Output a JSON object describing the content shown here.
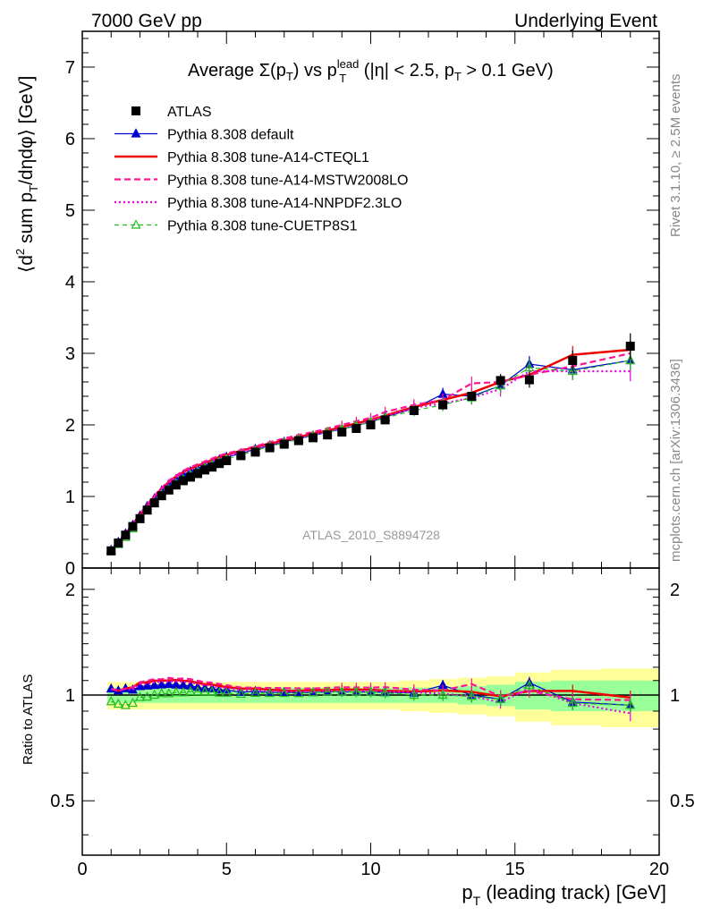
{
  "header": {
    "left": "7000 GeV pp",
    "right": "Underlying Event",
    "side_top": "Rivet 3.1.10, ≥ 2.5M events",
    "side_bottom": "mcplots.cern.ch [arXiv:1306.3436]",
    "watermark": "ATLAS_2010_S8894728"
  },
  "chart_data": {
    "type": "line",
    "title": "Average Σ(pT) vs pT lead (|η| < 2.5, pT > 0.1 GeV)",
    "title_parts": {
      "avg": "Average ",
      "sigma": "Σ(p",
      "sub_t": "T",
      "close": ")",
      "vs": " vs p",
      "sup_lead": "lead",
      "cut1": " (|η| < 2.5, p",
      "cut2": " > 0.1 GeV)"
    },
    "ylabel_parts": {
      "open": "⟨d",
      "sup2": "2",
      "mid": " sum p",
      "sub_t": "T",
      "tail": "/dηdφ⟩ [GeV]"
    },
    "ratio_ylabel": "Ratio to ATLAS",
    "xlabel_parts": {
      "p": "p",
      "sub_t": "T",
      "rest": " (leading track) [GeV]"
    },
    "xlim": [
      0,
      20
    ],
    "ylim": [
      0,
      7.5
    ],
    "ratio_ylim": [
      0.35,
      2.3
    ],
    "x_ticks": [
      "0",
      "5",
      "10",
      "15",
      "20"
    ],
    "y_ticks": [
      "0",
      "1",
      "2",
      "3",
      "4",
      "5",
      "6",
      "7"
    ],
    "ratio_ticks": [
      "0.5",
      "1",
      "2"
    ],
    "legend_position": "top-left",
    "series": [
      {
        "name": "ATLAS",
        "style": "data",
        "color": "#000000",
        "x": [
          1.0,
          1.25,
          1.5,
          1.75,
          2.0,
          2.25,
          2.5,
          2.75,
          3.0,
          3.25,
          3.5,
          3.75,
          4.0,
          4.25,
          4.5,
          4.75,
          5.0,
          5.5,
          6.0,
          6.5,
          7.0,
          7.5,
          8.0,
          8.5,
          9.0,
          9.5,
          10.0,
          10.5,
          11.5,
          12.5,
          13.5,
          14.5,
          15.5,
          17.0,
          19.0
        ],
        "y": [
          0.24,
          0.35,
          0.46,
          0.58,
          0.69,
          0.81,
          0.91,
          1.01,
          1.09,
          1.16,
          1.22,
          1.27,
          1.32,
          1.37,
          1.41,
          1.46,
          1.5,
          1.57,
          1.62,
          1.68,
          1.73,
          1.78,
          1.82,
          1.86,
          1.9,
          1.95,
          2.0,
          2.07,
          2.2,
          2.28,
          2.4,
          2.62,
          2.63,
          2.9,
          3.1
        ]
      },
      {
        "name": "Pythia 8.308 default",
        "style": "triangle",
        "color": "#0000cc",
        "y": [
          0.25,
          0.36,
          0.48,
          0.6,
          0.73,
          0.86,
          0.97,
          1.08,
          1.17,
          1.24,
          1.3,
          1.35,
          1.39,
          1.43,
          1.47,
          1.51,
          1.55,
          1.6,
          1.66,
          1.71,
          1.76,
          1.81,
          1.85,
          1.9,
          1.94,
          1.99,
          2.04,
          2.11,
          2.23,
          2.43,
          2.4,
          2.55,
          2.85,
          2.77,
          2.9
        ]
      },
      {
        "name": "Pythia 8.308 tune-A14-CTEQL1",
        "style": "solid",
        "color": "#ee0000",
        "y": [
          0.25,
          0.36,
          0.48,
          0.61,
          0.75,
          0.88,
          1.0,
          1.11,
          1.2,
          1.28,
          1.34,
          1.39,
          1.43,
          1.47,
          1.51,
          1.55,
          1.58,
          1.64,
          1.69,
          1.74,
          1.78,
          1.83,
          1.88,
          1.92,
          1.97,
          2.02,
          2.07,
          2.13,
          2.25,
          2.35,
          2.45,
          2.6,
          2.7,
          2.98,
          3.05
        ]
      },
      {
        "name": "Pythia 8.308 tune-A14-MSTW2008LO",
        "style": "dashed",
        "color": "#ff1493",
        "y": [
          0.25,
          0.36,
          0.48,
          0.61,
          0.75,
          0.89,
          1.01,
          1.12,
          1.22,
          1.29,
          1.36,
          1.41,
          1.45,
          1.49,
          1.53,
          1.57,
          1.6,
          1.65,
          1.7,
          1.76,
          1.81,
          1.86,
          1.9,
          1.95,
          2.0,
          2.05,
          2.1,
          2.18,
          2.28,
          2.35,
          2.58,
          2.6,
          2.7,
          2.82,
          3.0
        ]
      },
      {
        "name": "Pythia 8.308 tune-A14-NNPDF2.3LO",
        "style": "dotted",
        "color": "#ee00ee",
        "y": [
          0.25,
          0.36,
          0.48,
          0.6,
          0.74,
          0.87,
          0.99,
          1.1,
          1.19,
          1.27,
          1.33,
          1.38,
          1.42,
          1.46,
          1.5,
          1.53,
          1.57,
          1.62,
          1.67,
          1.72,
          1.77,
          1.82,
          1.86,
          1.91,
          1.95,
          2.0,
          2.06,
          2.12,
          2.24,
          2.3,
          2.38,
          2.5,
          2.75,
          2.75,
          2.75
        ]
      },
      {
        "name": "Pythia 8.308 tune-CUETP8S1",
        "style": "dashed-open-triangle",
        "color": "#22bb22",
        "y": [
          0.23,
          0.33,
          0.43,
          0.55,
          0.68,
          0.8,
          0.91,
          1.02,
          1.1,
          1.18,
          1.24,
          1.3,
          1.35,
          1.4,
          1.44,
          1.48,
          1.52,
          1.58,
          1.64,
          1.7,
          1.75,
          1.8,
          1.85,
          1.9,
          1.94,
          1.99,
          2.04,
          2.1,
          2.2,
          2.28,
          2.38,
          2.55,
          2.8,
          2.75,
          2.9
        ]
      }
    ],
    "ratio_band_inner": [
      0.05,
      0.05,
      0.05,
      0.05,
      0.05,
      0.05,
      0.05,
      0.05,
      0.05,
      0.05,
      0.05,
      0.05,
      0.05,
      0.05,
      0.05,
      0.05,
      0.05,
      0.05,
      0.05,
      0.05,
      0.05,
      0.05,
      0.05,
      0.05,
      0.05,
      0.05,
      0.05,
      0.05,
      0.05,
      0.05,
      0.06,
      0.07,
      0.09,
      0.1,
      0.1
    ],
    "ratio_band_outer": [
      0.09,
      0.09,
      0.09,
      0.09,
      0.09,
      0.09,
      0.09,
      0.09,
      0.09,
      0.09,
      0.09,
      0.09,
      0.09,
      0.09,
      0.09,
      0.09,
      0.09,
      0.09,
      0.09,
      0.09,
      0.09,
      0.09,
      0.09,
      0.09,
      0.09,
      0.09,
      0.09,
      0.09,
      0.1,
      0.11,
      0.12,
      0.13,
      0.16,
      0.18,
      0.19
    ]
  }
}
